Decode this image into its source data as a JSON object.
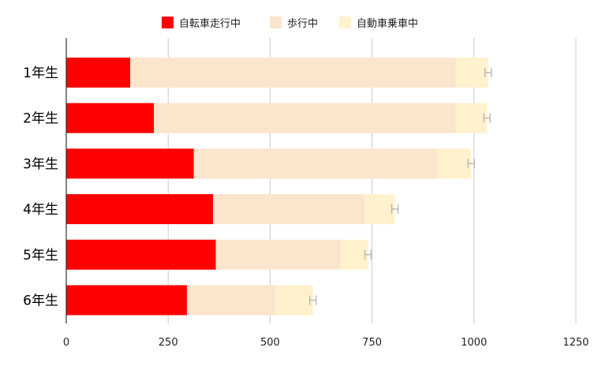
{
  "colors": {
    "background": "#ffffff",
    "grid": "#cccccc",
    "axis": "#333333",
    "errorbar": "#bbbbbb"
  },
  "chart_data": {
    "type": "bar",
    "orientation": "horizontal",
    "stacked": true,
    "title": "",
    "xlabel": "",
    "ylabel": "",
    "legend_position": "top",
    "grid": true,
    "xlim": [
      0,
      1250
    ],
    "xticks": [
      "0",
      "250",
      "500",
      "750",
      "1000",
      "1250"
    ],
    "categories": [
      "1年生",
      "2年生",
      "3年生",
      "4年生",
      "5年生",
      "6年生"
    ],
    "series": [
      {
        "name": "自転車走行中",
        "color": "#ff0000",
        "values": [
          157,
          215,
          313,
          360,
          367,
          296
        ]
      },
      {
        "name": "歩行中",
        "color": "#fce5cd",
        "values": [
          798,
          740,
          597,
          372,
          306,
          217
        ]
      },
      {
        "name": "自動車乗車中",
        "color": "#fff2cc",
        "values": [
          80,
          77,
          83,
          74,
          67,
          92
        ]
      }
    ],
    "error_bar_ends": [
      1035,
      1032,
      993,
      806,
      740,
      605
    ]
  }
}
